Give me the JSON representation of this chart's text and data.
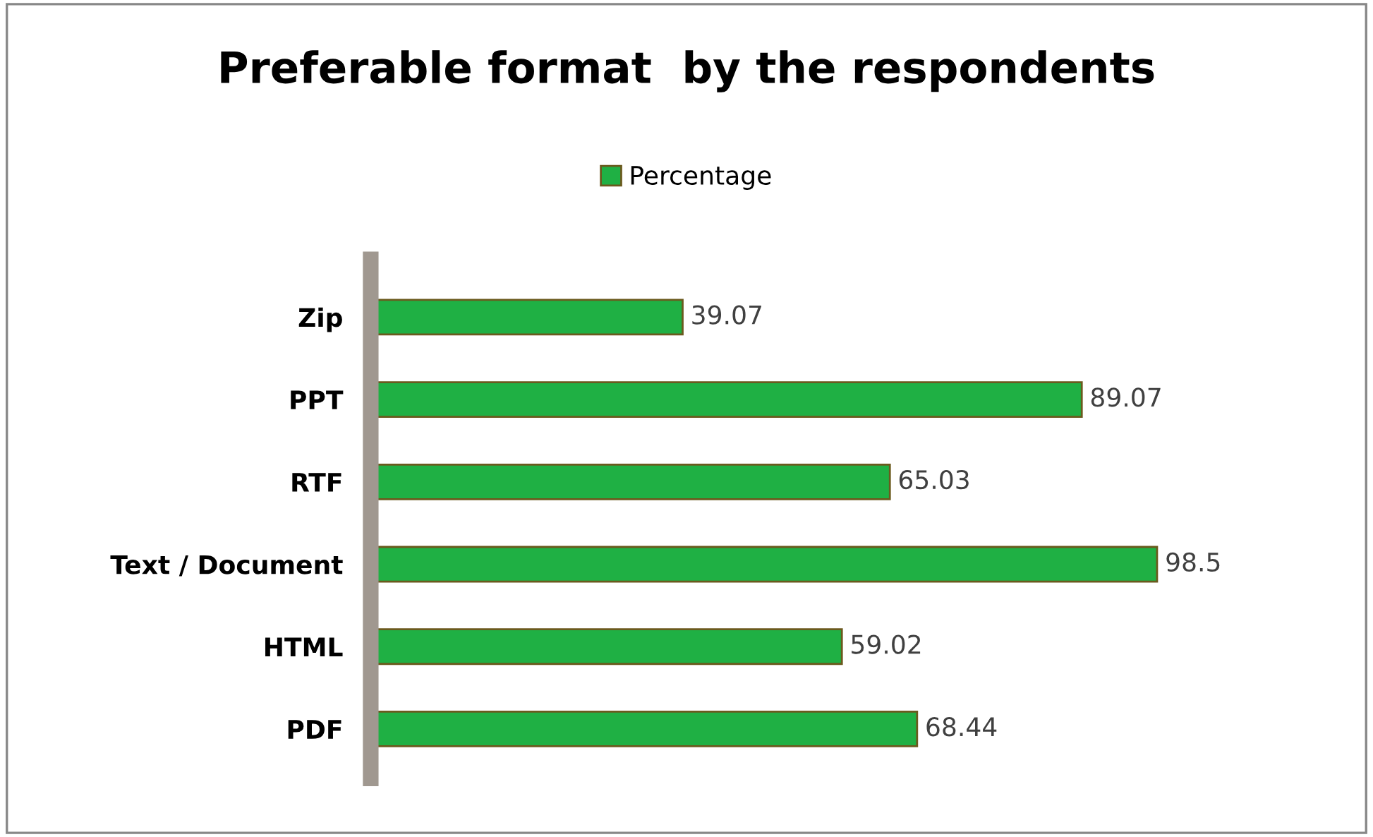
{
  "chart_data": {
    "type": "bar",
    "orientation": "horizontal",
    "title": "Preferable format  by the respondents",
    "categories": [
      "Zip",
      "PPT",
      "RTF",
      "Text / Document",
      "HTML",
      "PDF"
    ],
    "series": [
      {
        "name": "Percentage",
        "color": "#1fb044",
        "values": [
          39.07,
          89.07,
          65.03,
          98.5,
          59.02,
          68.44
        ]
      }
    ],
    "data_labels": true,
    "legend": "top",
    "grid": false
  }
}
